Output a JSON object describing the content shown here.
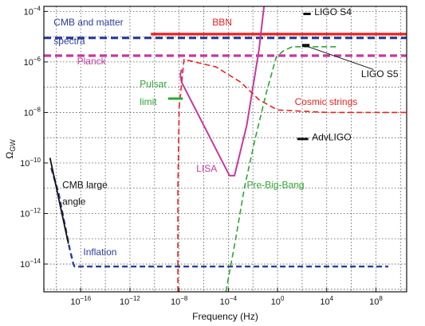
{
  "chart_data": {
    "type": "line",
    "title": "",
    "xlabel": "Frequency (Hz)",
    "ylabel": "Ω",
    "ylabel_sub": "GW",
    "x_scale": "log",
    "y_scale": "log",
    "xlim_log10": [
      -19,
      10.5
    ],
    "ylim_log10": [
      -15.1,
      -3.8
    ],
    "grid": true,
    "x_ticks": [
      {
        "log": -16,
        "base": "10",
        "exp": "−16"
      },
      {
        "log": -12,
        "base": "10",
        "exp": "−12"
      },
      {
        "log": -8,
        "base": "10",
        "exp": "−8"
      },
      {
        "log": -4,
        "base": "10",
        "exp": "−4"
      },
      {
        "log": 0,
        "base": "10",
        "exp": "0"
      },
      {
        "log": 4,
        "base": "10",
        "exp": "4"
      },
      {
        "log": 8,
        "base": "10",
        "exp": "8"
      }
    ],
    "y_ticks": [
      {
        "log": -4,
        "base": "10",
        "exp": "−4"
      },
      {
        "log": -6,
        "base": "10",
        "exp": "−6"
      },
      {
        "log": -8,
        "base": "10",
        "exp": "−8"
      },
      {
        "log": -10,
        "base": "10",
        "exp": "−10"
      },
      {
        "log": -12,
        "base": "10",
        "exp": "−12"
      },
      {
        "log": -14,
        "base": "10",
        "exp": "−14"
      }
    ],
    "series": [
      {
        "name": "BBN",
        "color": "#e8231f",
        "style": "solid",
        "width": 3.2,
        "x_log10": [
          -10.3,
          10.5
        ],
        "y_log10": [
          -4.9,
          -4.9
        ]
      },
      {
        "name": "CMB and matter spectra",
        "color": "#2b3d9a",
        "style": "dashed",
        "width": 3.2,
        "x_log10": [
          -19,
          10.5
        ],
        "y_log10": [
          -5.05,
          -5.05
        ]
      },
      {
        "name": "Planck",
        "color": "#c4399f",
        "style": "dashed",
        "width": 3.2,
        "x_log10": [
          -19,
          10.5
        ],
        "y_log10": [
          -5.75,
          -5.75
        ]
      },
      {
        "name": "Inflation",
        "color": "#2b3d9a",
        "style": "dashed",
        "width": 2.4,
        "x_log10": [
          -18.4,
          -17.8,
          -17.4,
          -16.9,
          -16.6,
          -16.5,
          -14,
          -10,
          -5,
          0,
          5,
          9
        ],
        "y_log10": [
          -10.2,
          -11.2,
          -12.2,
          -13.4,
          -14,
          -14.1,
          -14.1,
          -14.1,
          -14.1,
          -14.1,
          -14.1,
          -14.1
        ]
      },
      {
        "name": "CMB large angle",
        "color": "#111111",
        "style": "solid",
        "width": 1.8,
        "x_log10": [
          -18.5,
          -17.0
        ],
        "y_log10": [
          -9.8,
          -13.2
        ]
      },
      {
        "name": "LISA",
        "color": "#c4399f",
        "style": "solid",
        "width": 2.0,
        "x_log10": [
          -7.8,
          -7.9,
          -7.8,
          -3.9,
          -3.5,
          -2.5,
          -1.5,
          -1.1
        ],
        "y_log10": [
          -6.3,
          -6.5,
          -6.8,
          -10.5,
          -10.5,
          -8.5,
          -5.5,
          -3.8
        ]
      },
      {
        "name": "Cosmic strings",
        "color": "#e8231f",
        "style": "dashed",
        "width": 1.6,
        "x_log10": [
          -8.1,
          -8.1,
          -8.0,
          -7.6,
          -5.0,
          -3.0,
          -1.5,
          0.0,
          4.0,
          10.5
        ],
        "y_log10": [
          -15.1,
          -11.0,
          -7.8,
          -5.9,
          -6.2,
          -6.8,
          -7.5,
          -7.9,
          -8.0,
          -8.0
        ]
      },
      {
        "name": "Pre-Big-Bang",
        "color": "#2ea534",
        "style": "dashed",
        "width": 1.6,
        "x_log10": [
          -4.2,
          -3.4,
          -2.7,
          -1.8,
          -0.9,
          -0.1,
          0.5,
          1.2,
          3.0,
          5.0
        ],
        "y_log10": [
          -15.1,
          -13.0,
          -11.0,
          -9.0,
          -7.2,
          -5.8,
          -5.55,
          -5.4,
          -5.4,
          -5.4
        ]
      },
      {
        "name": "LIGO S5",
        "color": "#111111",
        "style": "solid",
        "width": 4,
        "x_log10": [
          2.0,
          2.6
        ],
        "y_log10": [
          -5.35,
          -5.35
        ]
      },
      {
        "name": "LIGO S4",
        "color": "#111111",
        "style": "solid",
        "width": 3,
        "x_log10": [
          2.1,
          2.7
        ],
        "y_log10": [
          -4.1,
          -4.1
        ]
      },
      {
        "name": "AdvLIGO",
        "color": "#111111",
        "style": "solid",
        "width": 3,
        "x_log10": [
          1.6,
          2.5
        ],
        "y_log10": [
          -9.05,
          -9.05
        ]
      },
      {
        "name": "Pulsar limit",
        "color": "#2ea534",
        "style": "solid",
        "width": 3,
        "x_log10": [
          -8.9,
          -7.7
        ],
        "y_log10": [
          -7.45,
          -7.45
        ]
      }
    ],
    "annotations": [
      {
        "text": "CMB and matter",
        "x_log10": -18.2,
        "y_log10": -4.55,
        "color": "#2b3d9a",
        "anchor": "start"
      },
      {
        "text": "spectra",
        "x_log10": -18.2,
        "y_log10": -5.3,
        "color": "#2b3d9a",
        "anchor": "start"
      },
      {
        "text": "BBN",
        "x_log10": -5.3,
        "y_log10": -4.55,
        "color": "#e8231f",
        "anchor": "start"
      },
      {
        "text": "Planck",
        "x_log10": -16.3,
        "y_log10": -6.1,
        "color": "#c4399f",
        "anchor": "start"
      },
      {
        "text": "LIGO S4",
        "x_log10": 3.0,
        "y_log10": -4.15,
        "color": "#111111",
        "anchor": "start"
      },
      {
        "text": "LIGO S5",
        "x_log10": 6.8,
        "y_log10": -6.6,
        "color": "#111111",
        "anchor": "start"
      },
      {
        "text": "Pulsar",
        "x_log10": -11.2,
        "y_log10": -7.0,
        "color": "#2ea534",
        "anchor": "start"
      },
      {
        "text": "limit",
        "x_log10": -11.2,
        "y_log10": -7.7,
        "color": "#2ea534",
        "anchor": "start"
      },
      {
        "text": "Cosmic strings",
        "x_log10": 1.4,
        "y_log10": -7.7,
        "color": "#e8231f",
        "anchor": "start"
      },
      {
        "text": "AdvLIGO",
        "x_log10": 2.8,
        "y_log10": -9.1,
        "color": "#111111",
        "anchor": "start"
      },
      {
        "text": "LISA",
        "x_log10": -6.6,
        "y_log10": -10.35,
        "color": "#c4399f",
        "anchor": "start"
      },
      {
        "text": "Pre-Big-Bang",
        "x_log10": -2.5,
        "y_log10": -11.0,
        "color": "#2ea534",
        "anchor": "start"
      },
      {
        "text": "CMB large",
        "x_log10": -17.5,
        "y_log10": -11.0,
        "color": "#111111",
        "anchor": "start"
      },
      {
        "text": "angle",
        "x_log10": -17.5,
        "y_log10": -11.65,
        "color": "#111111",
        "anchor": "start"
      },
      {
        "text": "Inflation",
        "x_log10": -15.8,
        "y_log10": -13.65,
        "color": "#2b3d9a",
        "anchor": "start"
      }
    ],
    "leaders": [
      {
        "name": "LIGO S5",
        "color": "#111111",
        "x_log10": [
          2.5,
          7.8
        ],
        "y_log10": [
          -5.4,
          -6.3
        ]
      }
    ]
  }
}
